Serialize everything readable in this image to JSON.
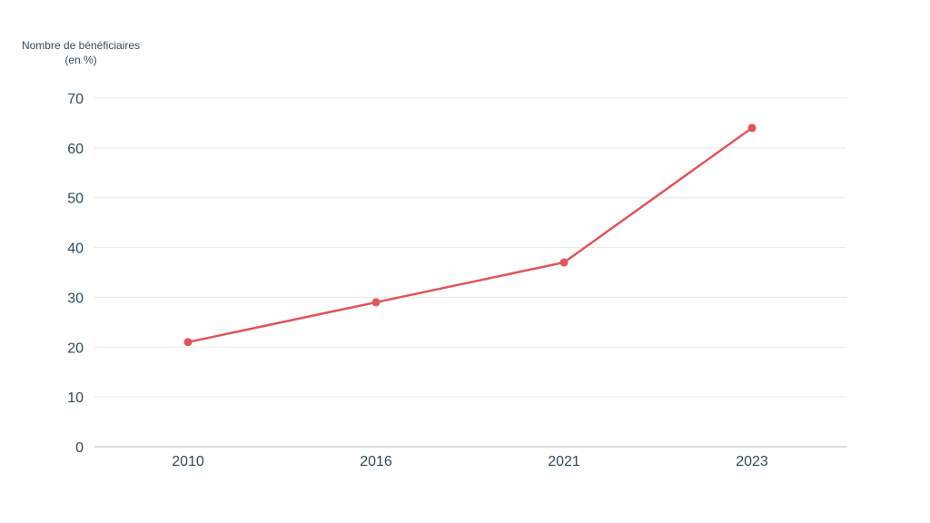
{
  "chart_data": {
    "type": "line",
    "x": [
      "2010",
      "2016",
      "2021",
      "2023"
    ],
    "series": [
      {
        "values": [
          21,
          29,
          37,
          64
        ],
        "color": "#e0555a"
      }
    ],
    "title": "",
    "xlabel": "",
    "ylabel_line1": "Nombre de bénéficiaires",
    "ylabel_line2": "(en %)",
    "ylim": [
      0,
      70
    ],
    "yticks": [
      "0",
      "10",
      "20",
      "30",
      "40",
      "50",
      "60",
      "70"
    ],
    "grid": true,
    "legend": "none"
  }
}
